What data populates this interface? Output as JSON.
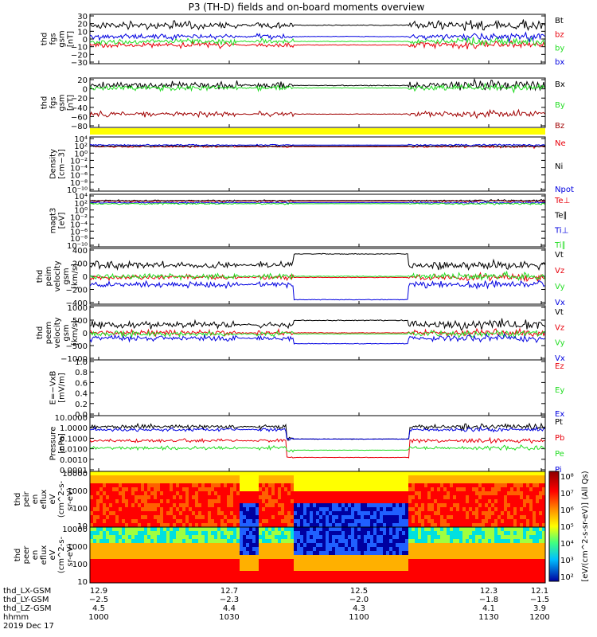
{
  "title": "P3 (TH-D) fields and on-board moments overview",
  "colors": {
    "black": "#000000",
    "red": "#e8000b",
    "green": "#22dd22",
    "blue": "#0000e0",
    "darkred": "#a00000",
    "yellow": "#ffff00"
  },
  "chart_data": [
    {
      "type": "line",
      "panel": "fgs_mag",
      "ylabel_lines": [
        "thd",
        "fgs",
        "gsm",
        "[nT]"
      ],
      "yticks": [
        "30",
        "20",
        "10",
        "0",
        "−10",
        "−20",
        "−30"
      ],
      "ylim": [
        -35,
        32
      ],
      "legend": [
        {
          "name": "Bt",
          "color": "black"
        },
        {
          "name": "bz",
          "color": "red"
        },
        {
          "name": "by",
          "color": "green"
        },
        {
          "name": "bx",
          "color": "blue"
        }
      ]
    },
    {
      "type": "line",
      "panel": "fgs_components",
      "ylabel_lines": [
        "thd",
        "fgs",
        "gsm",
        "[nT]"
      ],
      "yticks": [
        "20",
        "0",
        "−20",
        "−40",
        "−60",
        "−80"
      ],
      "ylim": [
        -88,
        28
      ],
      "legend": [
        {
          "name": "Bx",
          "color": "black"
        },
        {
          "name": "By",
          "color": "green"
        },
        {
          "name": "Bz",
          "color": "darkred"
        }
      ]
    },
    {
      "type": "line",
      "panel": "density",
      "ylabel_lines": [
        "Density",
        "[cm−3]"
      ],
      "yticks": [
        "10⁴",
        "10²",
        "10⁰",
        "10⁻²",
        "10⁻⁴",
        "10⁻⁶",
        "10⁻⁸",
        "10⁻¹⁰"
      ],
      "legend": [
        {
          "name": "Ne",
          "color": "red"
        },
        {
          "name": "Ni",
          "color": "black"
        },
        {
          "name": "Npot",
          "color": "blue"
        }
      ]
    },
    {
      "type": "line",
      "panel": "temperature",
      "ylabel_lines": [
        "magt3",
        "[eV]"
      ],
      "yticks": [
        "10⁴",
        "10²",
        "10⁰",
        "10⁻²",
        "10⁻⁴",
        "10⁻⁶",
        "10⁻⁸",
        "10⁻¹⁰"
      ],
      "legend": [
        {
          "name": "Te⊥",
          "color": "red"
        },
        {
          "name": "Te∥",
          "color": "black"
        },
        {
          "name": "Ti⊥",
          "color": "blue"
        },
        {
          "name": "Ti∥",
          "color": "green"
        }
      ]
    },
    {
      "type": "line",
      "panel": "ion_velocity",
      "ylabel_lines": [
        "thd",
        "peim",
        "velocity",
        "gsm",
        "[km/s]"
      ],
      "yticks": [
        "400",
        "200",
        "0",
        "−200",
        "−400"
      ],
      "ylim": [
        -420,
        420
      ],
      "legend": [
        {
          "name": "Vt",
          "color": "black"
        },
        {
          "name": "Vz",
          "color": "red"
        },
        {
          "name": "Vy",
          "color": "green"
        },
        {
          "name": "Vx",
          "color": "blue"
        }
      ]
    },
    {
      "type": "line",
      "panel": "electron_velocity",
      "ylabel_lines": [
        "thd",
        "peem",
        "velocity",
        "gsm",
        "[km/s]"
      ],
      "yticks": [
        "1000",
        "500",
        "0",
        "−500",
        "−1000"
      ],
      "ylim": [
        -1050,
        1050
      ],
      "legend": [
        {
          "name": "Vt",
          "color": "black"
        },
        {
          "name": "Vz",
          "color": "red"
        },
        {
          "name": "Vy",
          "color": "green"
        },
        {
          "name": "Vx",
          "color": "blue"
        }
      ]
    },
    {
      "type": "line",
      "panel": "efield",
      "ylabel_lines": [
        "E=−VxB",
        "[mV/m]"
      ],
      "yticks": [
        "1.0",
        "0.8",
        "0.6",
        "0.4",
        "0.2",
        "0.0"
      ],
      "ylim": [
        0,
        1.05
      ],
      "legend": [
        {
          "name": "Ez",
          "color": "red"
        },
        {
          "name": "Ey",
          "color": "green"
        },
        {
          "name": "Ex",
          "color": "blue"
        }
      ]
    },
    {
      "type": "line",
      "panel": "pressure",
      "ylabel_lines": [
        "Pressure",
        "[nPa]"
      ],
      "yticks": [
        "10.0000",
        "1.0000",
        "0.1000",
        "0.0100",
        "0.0010",
        "0.0001"
      ],
      "legend": [
        {
          "name": "Pt",
          "color": "black"
        },
        {
          "name": "Pb",
          "color": "red"
        },
        {
          "name": "Pe",
          "color": "green"
        },
        {
          "name": "Pi",
          "color": "blue"
        }
      ]
    },
    {
      "type": "heatmap",
      "panel": "ion_spectrogram",
      "ylabel_lines": [
        "thd",
        "peir",
        "en",
        "eflux",
        "eV",
        "(cm^2-s-",
        "sr-eV)"
      ],
      "yticks": [
        "10000",
        "1000",
        "100",
        "10"
      ]
    },
    {
      "type": "heatmap",
      "panel": "electron_spectrogram",
      "ylabel_lines": [
        "thd",
        "peer",
        "en",
        "eflux",
        "eV",
        "(cm^2-s-",
        "sr-eV)"
      ],
      "yticks": [
        "10000",
        "1000",
        "100",
        "10"
      ]
    }
  ],
  "colorbar": {
    "ticks": [
      "10⁸",
      "10⁷",
      "10⁶",
      "10⁵",
      "10⁴",
      "10³",
      "10²"
    ],
    "label": "[eV/(cm^2-s-sr-eV)] (All Qs)"
  },
  "x_axis": {
    "rows": [
      {
        "label": "thd_LX-GSM",
        "values": [
          "12.9",
          "12.7",
          "12.5",
          "12.3",
          "12.1"
        ]
      },
      {
        "label": "thd_LY-GSM",
        "values": [
          "−2.5",
          "−2.3",
          "−2.0",
          "−1.8",
          "−1.5"
        ]
      },
      {
        "label": "thd_LZ-GSM",
        "values": [
          "4.5",
          "4.4",
          "4.3",
          "4.1",
          "3.9"
        ]
      },
      {
        "label": "hhmm",
        "values": [
          "1000",
          "1030",
          "1100",
          "1130",
          "1200"
        ]
      }
    ],
    "date": "2019 Dec 17"
  }
}
